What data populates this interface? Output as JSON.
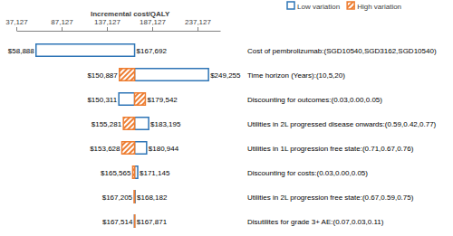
{
  "chart_data": {
    "type": "bar",
    "orientation": "horizontal",
    "xlabel": "Incremental cost/QALY",
    "categories": [
      "Cost of pembrolizumab:(SGD10540,SGD3162,SGD10540)",
      "Time horizon (Years):(10,5,20)",
      "Discounting for outcomes:(0.03,0.00,0.05)",
      "Utilities in 2L progressed disease onwards:(0.59,0.42,0.77)",
      "Utilities in 1L progression free state:(0.71,0.67,0.76)",
      "Discounting for costs:(0.03,0.00,0.05)",
      "Utilities in 2L progression free state:(0.67,0.59,0.75)",
      "Disutilites for grade 3+ AE:(0.07,0.03,0.11)"
    ],
    "base": 167692,
    "series": [
      {
        "name": "Low variation",
        "color": "#2e75b6",
        "values": [
          58888,
          249255,
          150311,
          183195,
          180944,
          171145,
          168182,
          167514
        ],
        "value_labels": [
          "$58,888",
          "$249,255",
          "$150,311",
          "$183,195",
          "$180,944",
          "$171,145",
          "$168,182",
          "$167,514"
        ]
      },
      {
        "name": "High variation",
        "color": "#ed7d31",
        "values": [
          167692,
          150887,
          179542,
          155281,
          153628,
          165565,
          167205,
          167871
        ],
        "value_labels": [
          "$167,692",
          "$150,887",
          "$179,542",
          "$155,281",
          "$153,628",
          "$165,565",
          "$167,205",
          "$167,871"
        ]
      }
    ],
    "xlim": [
      37127,
      262127
    ],
    "xticks": [
      {
        "value": 37127,
        "label": "37,127"
      },
      {
        "value": 87127,
        "label": "87,127"
      },
      {
        "value": 137127,
        "label": "137,127"
      },
      {
        "value": 187127,
        "label": "187,127"
      },
      {
        "value": 237127,
        "label": "237,127"
      }
    ],
    "legend": "top",
    "data_labels": true
  }
}
